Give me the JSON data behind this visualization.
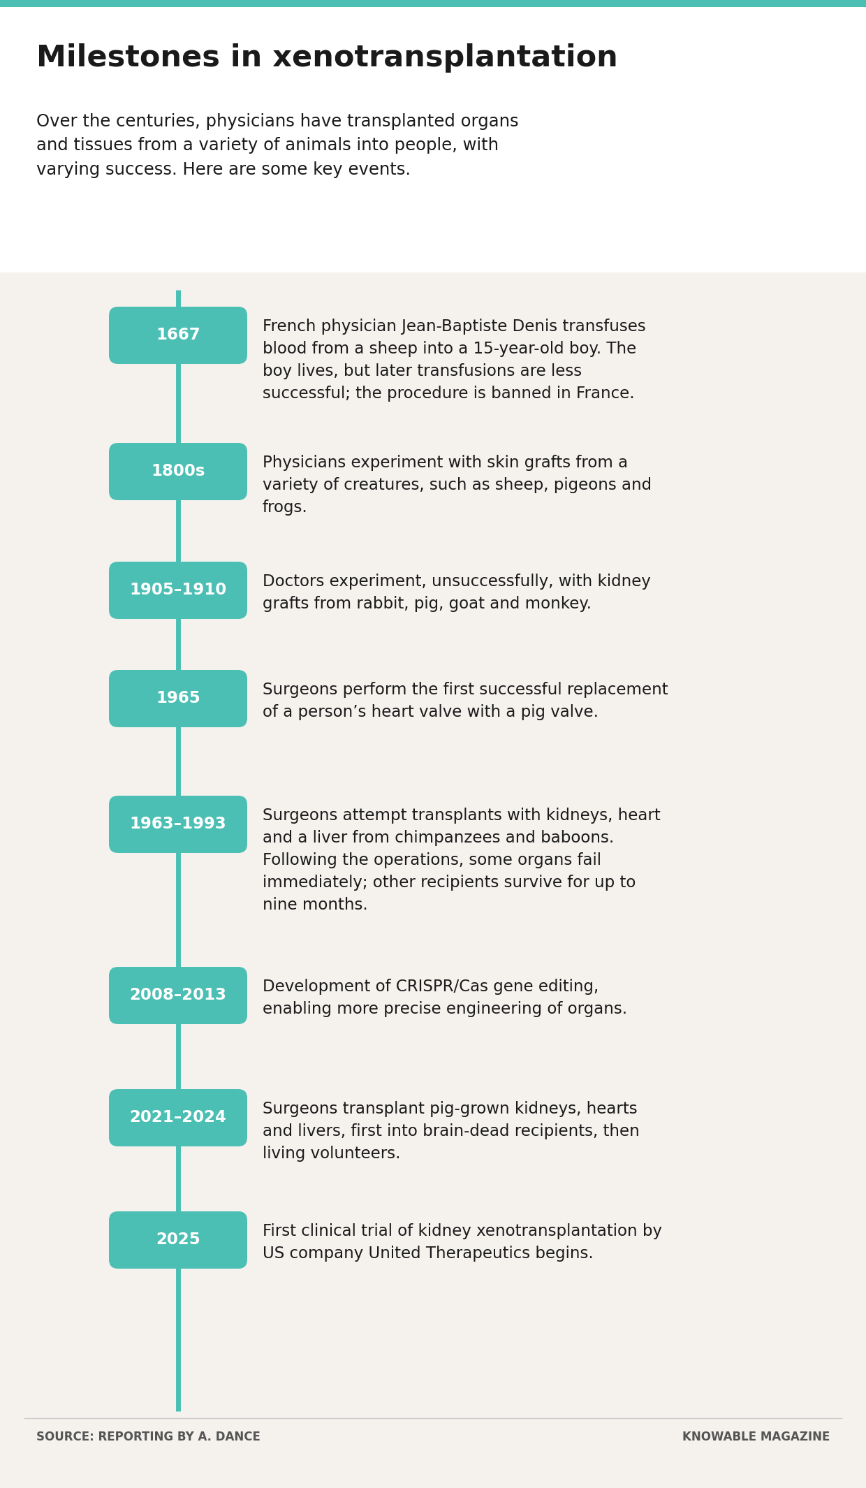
{
  "title": "Milestones in xenotransplantation",
  "subtitle": "Over the centuries, physicians have transplanted organs\nand tissues from a variety of animals into people, with\nvarying success. Here are some key events.",
  "background_color": "#f5f2ee",
  "header_background": "#ffffff",
  "timeline_color": "#4bbfb3",
  "label_bg_color": "#4bbfb3",
  "label_text_color": "#ffffff",
  "event_text_color": "#1a1a1a",
  "title_color": "#1a1a1a",
  "subtitle_color": "#1a1a1a",
  "source_left": "SOURCE: REPORTING BY A. DANCE",
  "source_right": "KNOWABLE MAGAZINE",
  "milestones": [
    {
      "label": "1667",
      "text": "French physician Jean-Baptiste Denis transfuses\nblood from a sheep into a 15-year-old boy. The\nboy lives, but later transfusions are less\nsuccessful; the procedure is banned in France."
    },
    {
      "label": "1800s",
      "text": "Physicians experiment with skin grafts from a\nvariety of creatures, such as sheep, pigeons and\nfrogs."
    },
    {
      "label": "1905–1910",
      "text": "Doctors experiment, unsuccessfully, with kidney\ngrafts from rabbit, pig, goat and monkey."
    },
    {
      "label": "1965",
      "text": "Surgeons perform the first successful replacement\nof a person’s heart valve with a pig valve."
    },
    {
      "label": "1963–1993",
      "text": "Surgeons attempt transplants with kidneys, heart\nand a liver from chimpanzees and baboons.\nFollowing the operations, some organs fail\nimmediately; other recipients survive for up to\nnine months."
    },
    {
      "label": "2008–2013",
      "text": "Development of CRISPR/Cas gene editing,\nenabling more precise engineering of organs."
    },
    {
      "label": "2021–2024",
      "text": "Surgeons transplant pig-grown kidneys, hearts\nand livers, first into brain-dead recipients, then\nliving volunteers."
    },
    {
      "label": "2025",
      "text": "First clinical trial of kidney xenotransplantation by\nUS company United Therapeutics begins."
    }
  ]
}
